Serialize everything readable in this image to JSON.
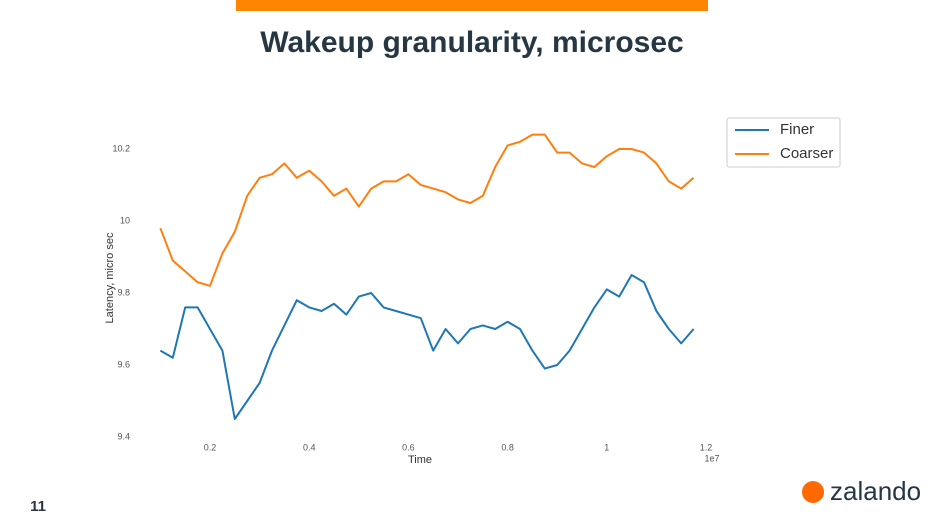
{
  "chart_data": {
    "type": "line",
    "title": "Wakeup granularity, microsec",
    "xlabel": "Time",
    "ylabel": "Latency, micro sec",
    "x_offset_label": "1e7",
    "x": [
      0.1,
      0.125,
      0.15,
      0.175,
      0.2,
      0.225,
      0.25,
      0.275,
      0.3,
      0.325,
      0.35,
      0.375,
      0.4,
      0.425,
      0.45,
      0.475,
      0.5,
      0.525,
      0.55,
      0.575,
      0.6,
      0.625,
      0.65,
      0.675,
      0.7,
      0.725,
      0.75,
      0.775,
      0.8,
      0.825,
      0.85,
      0.875,
      0.9,
      0.925,
      0.95,
      0.975,
      1.0,
      1.025,
      1.05,
      1.075,
      1.1,
      1.125,
      1.15,
      1.175
    ],
    "series": [
      {
        "name": "Finer",
        "color": "#1f77b4",
        "values": [
          9.64,
          9.62,
          9.76,
          9.76,
          9.7,
          9.64,
          9.45,
          9.5,
          9.55,
          9.64,
          9.71,
          9.78,
          9.76,
          9.75,
          9.77,
          9.74,
          9.79,
          9.8,
          9.76,
          9.75,
          9.74,
          9.73,
          9.64,
          9.7,
          9.66,
          9.7,
          9.71,
          9.7,
          9.72,
          9.7,
          9.64,
          9.59,
          9.6,
          9.64,
          9.7,
          9.76,
          9.81,
          9.79,
          9.85,
          9.83,
          9.75,
          9.7,
          9.66,
          9.7
        ]
      },
      {
        "name": "Coarser",
        "color": "#ff7f0e",
        "values": [
          9.98,
          9.89,
          9.86,
          9.83,
          9.82,
          9.91,
          9.97,
          10.07,
          10.12,
          10.13,
          10.16,
          10.12,
          10.14,
          10.11,
          10.07,
          10.09,
          10.04,
          10.09,
          10.11,
          10.11,
          10.13,
          10.1,
          10.09,
          10.08,
          10.06,
          10.05,
          10.07,
          10.15,
          10.21,
          10.22,
          10.24,
          10.24,
          10.19,
          10.19,
          10.16,
          10.15,
          10.18,
          10.2,
          10.2,
          10.19,
          10.16,
          10.11,
          10.09,
          10.12
        ]
      }
    ],
    "xlim": [
      0.1,
      1.2
    ],
    "xticks": [
      0.2,
      0.4,
      0.6,
      0.8,
      1.0,
      1.2
    ],
    "ylim": [
      9.4,
      10.2
    ],
    "yticks": [
      9.4,
      9.6,
      9.8,
      10.0,
      10.2
    ],
    "legend": "upper right",
    "grid": false
  },
  "page_number": "11",
  "logo": "zalando"
}
